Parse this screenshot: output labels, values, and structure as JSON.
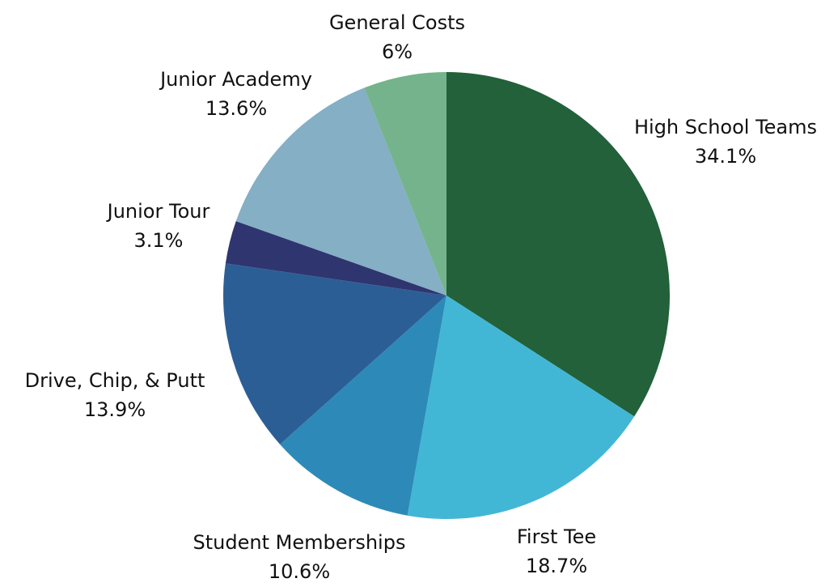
{
  "chart_data": {
    "type": "pie",
    "title": "",
    "start_angle_deg": 0,
    "direction": "clockwise",
    "slices": [
      {
        "label": "High School Teams",
        "value": 34.1,
        "display_value": "34.1%",
        "color": "#22613a"
      },
      {
        "label": "First Tee",
        "value": 18.7,
        "display_value": "18.7%",
        "color": "#42b7d5"
      },
      {
        "label": "Student Memberships",
        "value": 10.6,
        "display_value": "10.6%",
        "color": "#2d8ab8"
      },
      {
        "label": "Drive, Chip, & Putt",
        "value": 13.9,
        "display_value": "13.9%",
        "color": "#2c5e96"
      },
      {
        "label": "Junior Tour",
        "value": 3.1,
        "display_value": "3.1%",
        "color": "#2f356f"
      },
      {
        "label": "Junior Academy",
        "value": 13.6,
        "display_value": "13.6%",
        "color": "#84afc5"
      },
      {
        "label": "General Costs",
        "value": 6,
        "display_value": "6%",
        "color": "#74b38c"
      }
    ]
  }
}
